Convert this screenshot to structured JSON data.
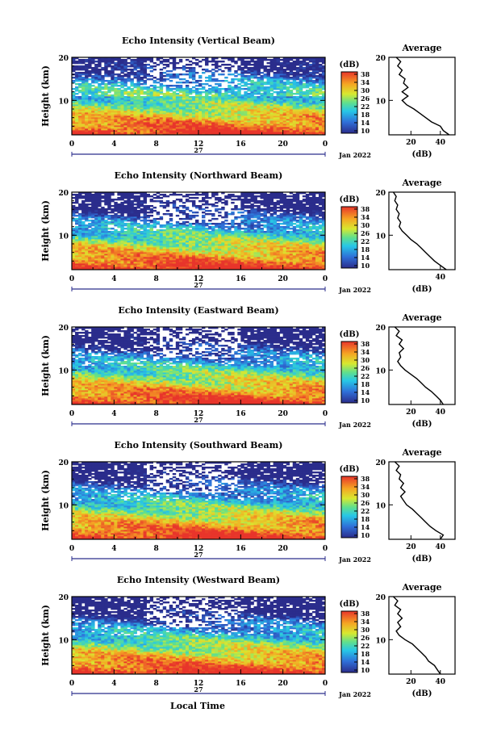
{
  "figure": {
    "date_label": "Jan 2022",
    "day_label": "27",
    "x_axis_label": "Local Time",
    "colorbar_unit": "(dB)",
    "profile_title": "Average",
    "profile_xlabel": "(dB)"
  },
  "chart_data": [
    {
      "type": "heatmap",
      "title": "Echo Intensity (Vertical Beam)",
      "xlabel": "",
      "ylabel": "Height (km)",
      "xlim": [
        0,
        24
      ],
      "ylim": [
        2,
        20
      ],
      "xticks": [
        "0",
        "4",
        "8",
        "12",
        "16",
        "20",
        "0"
      ],
      "yticks": [
        "10",
        "20"
      ],
      "colorbar": {
        "range": [
          10,
          38
        ],
        "ticks": [
          "38",
          "34",
          "30",
          "26",
          "22",
          "18",
          "14",
          "10"
        ]
      },
      "profile": {
        "type": "line",
        "title": "Average",
        "xlabel": "(dB)",
        "xticks": [
          "20",
          "40"
        ],
        "yticks": [
          "10",
          "20"
        ],
        "xlim": [
          5,
          50
        ],
        "height_km": [
          2,
          3,
          4,
          5,
          6,
          7,
          8,
          9,
          10,
          11,
          12,
          13,
          14,
          15,
          16,
          17,
          18,
          19,
          20
        ],
        "average_db": [
          46,
          42,
          40,
          34,
          30,
          26,
          22,
          17,
          14,
          18,
          14,
          18,
          15,
          16,
          12,
          14,
          11,
          13,
          10
        ]
      }
    },
    {
      "type": "heatmap",
      "title": "Echo Intensity (Northward Beam)",
      "xlabel": "",
      "ylabel": "Height (km)",
      "xlim": [
        0,
        24
      ],
      "ylim": [
        2,
        20
      ],
      "xticks": [
        "0",
        "4",
        "8",
        "12",
        "16",
        "20",
        "0"
      ],
      "yticks": [
        "10",
        "20"
      ],
      "colorbar": {
        "range": [
          10,
          38
        ],
        "ticks": [
          "38",
          "34",
          "30",
          "26",
          "22",
          "18",
          "14",
          "10"
        ]
      },
      "profile": {
        "type": "line",
        "title": "Average",
        "xlabel": "(dB)",
        "xticks": [
          "40"
        ],
        "yticks": [
          "10",
          "20"
        ],
        "xlim": [
          5,
          50
        ],
        "height_km": [
          2,
          3,
          4,
          5,
          6,
          7,
          8,
          9,
          10,
          11,
          12,
          13,
          14,
          15,
          16,
          17,
          18,
          19,
          20
        ],
        "average_db": [
          44,
          40,
          36,
          33,
          30,
          27,
          24,
          20,
          17,
          14,
          12,
          13,
          11,
          12,
          10,
          11,
          9,
          10,
          8
        ]
      }
    },
    {
      "type": "heatmap",
      "title": "Echo Intensity (Eastward Beam)",
      "xlabel": "",
      "ylabel": "Height (km)",
      "xlim": [
        0,
        24
      ],
      "ylim": [
        2,
        20
      ],
      "xticks": [
        "0",
        "4",
        "8",
        "12",
        "16",
        "20",
        "0"
      ],
      "yticks": [
        "10",
        "20"
      ],
      "colorbar": {
        "range": [
          10,
          38
        ],
        "ticks": [
          "38",
          "34",
          "30",
          "26",
          "22",
          "18",
          "14",
          "10"
        ]
      },
      "profile": {
        "type": "line",
        "title": "Average",
        "xlabel": "(dB)",
        "xticks": [
          "20",
          "40"
        ],
        "yticks": [
          "10",
          "20"
        ],
        "xlim": [
          5,
          50
        ],
        "height_km": [
          2,
          3,
          4,
          5,
          6,
          7,
          8,
          9,
          10,
          11,
          12,
          13,
          14,
          15,
          16,
          17,
          18,
          19,
          20
        ],
        "average_db": [
          42,
          40,
          37,
          34,
          30,
          27,
          24,
          20,
          16,
          13,
          11,
          13,
          12,
          15,
          12,
          14,
          10,
          12,
          9
        ]
      }
    },
    {
      "type": "heatmap",
      "title": "Echo Intensity (Southward Beam)",
      "xlabel": "",
      "ylabel": "Height (km)",
      "xlim": [
        0,
        24
      ],
      "ylim": [
        2,
        20
      ],
      "xticks": [
        "0",
        "4",
        "8",
        "12",
        "16",
        "20",
        "0"
      ],
      "yticks": [
        "10",
        "20"
      ],
      "colorbar": {
        "range": [
          10,
          38
        ],
        "ticks": [
          "38",
          "34",
          "30",
          "26",
          "22",
          "18",
          "14",
          "10"
        ]
      },
      "profile": {
        "type": "line",
        "title": "Average",
        "xlabel": "(dB)",
        "xticks": [
          "20",
          "40"
        ],
        "yticks": [
          "10",
          "20"
        ],
        "xlim": [
          5,
          50
        ],
        "height_km": [
          2,
          3,
          4,
          5,
          6,
          7,
          8,
          9,
          10,
          11,
          12,
          13,
          14,
          15,
          16,
          17,
          18,
          19,
          20
        ],
        "average_db": [
          40,
          42,
          37,
          33,
          30,
          27,
          24,
          21,
          17,
          15,
          13,
          16,
          13,
          15,
          12,
          13,
          10,
          12,
          9
        ]
      }
    },
    {
      "type": "heatmap",
      "title": "Echo Intensity (Westward Beam)",
      "xlabel": "Local Time",
      "ylabel": "Height (km)",
      "xlim": [
        0,
        24
      ],
      "ylim": [
        2,
        20
      ],
      "xticks": [
        "0",
        "4",
        "8",
        "12",
        "16",
        "20",
        "0"
      ],
      "yticks": [
        "10",
        "20"
      ],
      "colorbar": {
        "range": [
          10,
          38
        ],
        "ticks": [
          "38",
          "34",
          "30",
          "26",
          "22",
          "18",
          "14",
          "10"
        ]
      },
      "profile": {
        "type": "line",
        "title": "Average",
        "xlabel": "(dB)",
        "xticks": [
          "20",
          "40"
        ],
        "yticks": [
          "10",
          "20"
        ],
        "xlim": [
          5,
          50
        ],
        "height_km": [
          2,
          3,
          4,
          5,
          6,
          7,
          8,
          9,
          10,
          11,
          12,
          13,
          14,
          15,
          16,
          17,
          18,
          19,
          20
        ],
        "average_db": [
          40,
          38,
          36,
          32,
          30,
          27,
          24,
          21,
          16,
          12,
          10,
          13,
          11,
          14,
          11,
          13,
          9,
          11,
          8
        ]
      }
    }
  ]
}
